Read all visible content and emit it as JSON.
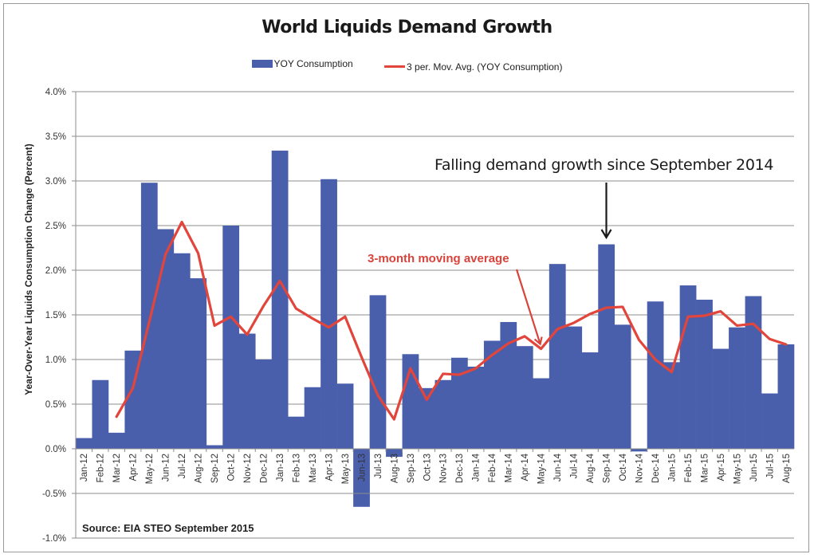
{
  "chart_data": {
    "type": "bar",
    "title": "World Liquids Demand Growth",
    "xlabel": "",
    "ylabel": "Year-Over-Year Liquids Consumption Change (Percent)",
    "ylim": [
      -1.0,
      4.0
    ],
    "yticks": [
      "-1.0%",
      "-0.5%",
      "0.0%",
      "0.5%",
      "1.0%",
      "1.5%",
      "2.0%",
      "2.5%",
      "3.0%",
      "3.5%",
      "4.0%"
    ],
    "ytick_values": [
      -1.0,
      -0.5,
      0.0,
      0.5,
      1.0,
      1.5,
      2.0,
      2.5,
      3.0,
      3.5,
      4.0
    ],
    "grid": true,
    "legend_position": "top-center",
    "categories": [
      "Jan-12",
      "Feb-12",
      "Mar-12",
      "Apr-12",
      "May-12",
      "Jun-12",
      "Jul-12",
      "Aug-12",
      "Sep-12",
      "Oct-12",
      "Nov-12",
      "Dec-12",
      "Jan-13",
      "Feb-13",
      "Mar-13",
      "Apr-13",
      "May-13",
      "Jun-13",
      "Jul-13",
      "Aug-13",
      "Sep-13",
      "Oct-13",
      "Nov-13",
      "Dec-13",
      "Jan-14",
      "Feb-14",
      "Mar-14",
      "Apr-14",
      "May-14",
      "Jun-14",
      "Jul-14",
      "Aug-14",
      "Sep-14",
      "Oct-14",
      "Nov-14",
      "Dec-14",
      "Jan-15",
      "Feb-15",
      "Mar-15",
      "Apr-15",
      "May-15",
      "Jun-15",
      "Jul-15",
      "Aug-15"
    ],
    "series": [
      {
        "name": "YOY Consumption",
        "type": "bar",
        "color": "#4a5fab",
        "values": [
          0.12,
          0.77,
          0.18,
          1.1,
          2.98,
          2.46,
          2.19,
          1.91,
          0.04,
          2.5,
          1.29,
          1.0,
          3.34,
          0.36,
          0.69,
          3.02,
          0.73,
          -0.65,
          1.72,
          -0.09,
          1.06,
          0.68,
          0.77,
          1.02,
          0.92,
          1.21,
          1.42,
          1.15,
          0.79,
          2.07,
          1.37,
          1.08,
          2.29,
          1.39,
          -0.03,
          1.65,
          0.97,
          1.83,
          1.67,
          1.12,
          1.36,
          1.71,
          0.62,
          1.17
        ]
      },
      {
        "name": "3 per. Mov. Avg. (YOY Consumption)",
        "type": "line",
        "color": "#e1453b",
        "values": [
          null,
          null,
          0.36,
          0.68,
          1.42,
          2.18,
          2.54,
          2.19,
          1.38,
          1.48,
          1.28,
          1.6,
          1.88,
          1.57,
          1.46,
          1.36,
          1.48,
          1.03,
          0.6,
          0.33,
          0.9,
          0.55,
          0.84,
          0.83,
          0.9,
          1.05,
          1.18,
          1.26,
          1.12,
          1.34,
          1.41,
          1.51,
          1.58,
          1.59,
          1.22,
          1.0,
          0.86,
          1.48,
          1.49,
          1.54,
          1.38,
          1.4,
          1.23,
          1.17
        ]
      }
    ],
    "annotations": [
      {
        "text": "Falling demand growth since September 2014",
        "points_to": "Sep-14"
      },
      {
        "text": "3-month moving average",
        "points_to": "May-14"
      }
    ],
    "source": "Source: EIA STEO September 2015"
  }
}
